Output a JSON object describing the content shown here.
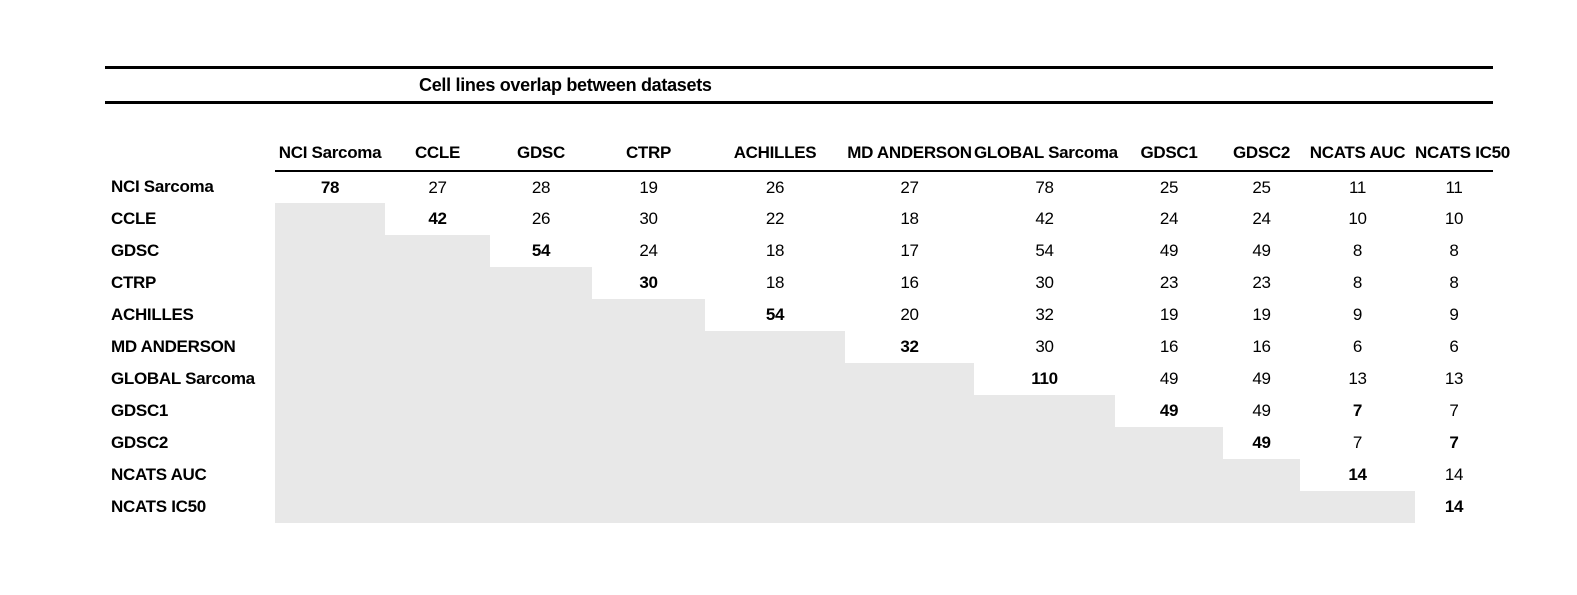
{
  "figure": {
    "title": "Cell lines overlap between datasets"
  },
  "chart_data": {
    "type": "table",
    "title": "Cell lines overlap between datasets",
    "columns": [
      "NCI Sarcoma",
      "CCLE",
      "GDSC",
      "CTRP",
      "ACHILLES",
      "MD ANDERSON",
      "GLOBAL Sarcoma",
      "GDSC1",
      "GDSC2",
      "NCATS AUC",
      "NCATS IC50"
    ],
    "rows": [
      {
        "label": "NCI Sarcoma",
        "values": [
          "78",
          "27",
          "28",
          "19",
          "26",
          "27",
          "78",
          "25",
          "25",
          "11",
          "11"
        ],
        "bold_cols": [
          0
        ]
      },
      {
        "label": "CCLE",
        "values": [
          null,
          "42",
          "26",
          "30",
          "22",
          "18",
          "42",
          "24",
          "24",
          "10",
          "10"
        ],
        "bold_cols": [
          1
        ]
      },
      {
        "label": "GDSC",
        "values": [
          null,
          null,
          "54",
          "24",
          "18",
          "17",
          "54",
          "49",
          "49",
          "8",
          "8"
        ],
        "bold_cols": [
          2
        ]
      },
      {
        "label": "CTRP",
        "values": [
          null,
          null,
          null,
          "30",
          "18",
          "16",
          "30",
          "23",
          "23",
          "8",
          "8"
        ],
        "bold_cols": [
          3
        ]
      },
      {
        "label": "ACHILLES",
        "values": [
          null,
          null,
          null,
          null,
          "54",
          "20",
          "32",
          "19",
          "19",
          "9",
          "9"
        ],
        "bold_cols": [
          4
        ]
      },
      {
        "label": "MD ANDERSON",
        "values": [
          null,
          null,
          null,
          null,
          null,
          "32",
          "30",
          "16",
          "16",
          "6",
          "6"
        ],
        "bold_cols": [
          5
        ]
      },
      {
        "label": "GLOBAL Sarcoma",
        "values": [
          null,
          null,
          null,
          null,
          null,
          null,
          "110",
          "49",
          "49",
          "13",
          "13"
        ],
        "bold_cols": [
          6
        ]
      },
      {
        "label": "GDSC1",
        "values": [
          null,
          null,
          null,
          null,
          null,
          null,
          null,
          "49",
          "49",
          "7",
          "7"
        ],
        "bold_cols": [
          7,
          9
        ]
      },
      {
        "label": "GDSC2",
        "values": [
          null,
          null,
          null,
          null,
          null,
          null,
          null,
          null,
          "49",
          "7",
          "7"
        ],
        "bold_cols": [
          8,
          10
        ]
      },
      {
        "label": "NCATS AUC",
        "values": [
          null,
          null,
          null,
          null,
          null,
          null,
          null,
          null,
          null,
          "14",
          "14"
        ],
        "bold_cols": [
          9
        ]
      },
      {
        "label": "NCATS IC50",
        "values": [
          null,
          null,
          null,
          null,
          null,
          null,
          null,
          null,
          null,
          null,
          "14"
        ],
        "bold_cols": [
          10
        ]
      }
    ],
    "shaded_region": "cells below the diagonal",
    "layout_hints": {
      "diagonal_bold": true,
      "header_underline": true,
      "double_rules_around_title": true
    },
    "colors": {
      "shade": "#e8e8e8",
      "rule": "#000000",
      "text": "#000000",
      "background": "#ffffff"
    }
  }
}
